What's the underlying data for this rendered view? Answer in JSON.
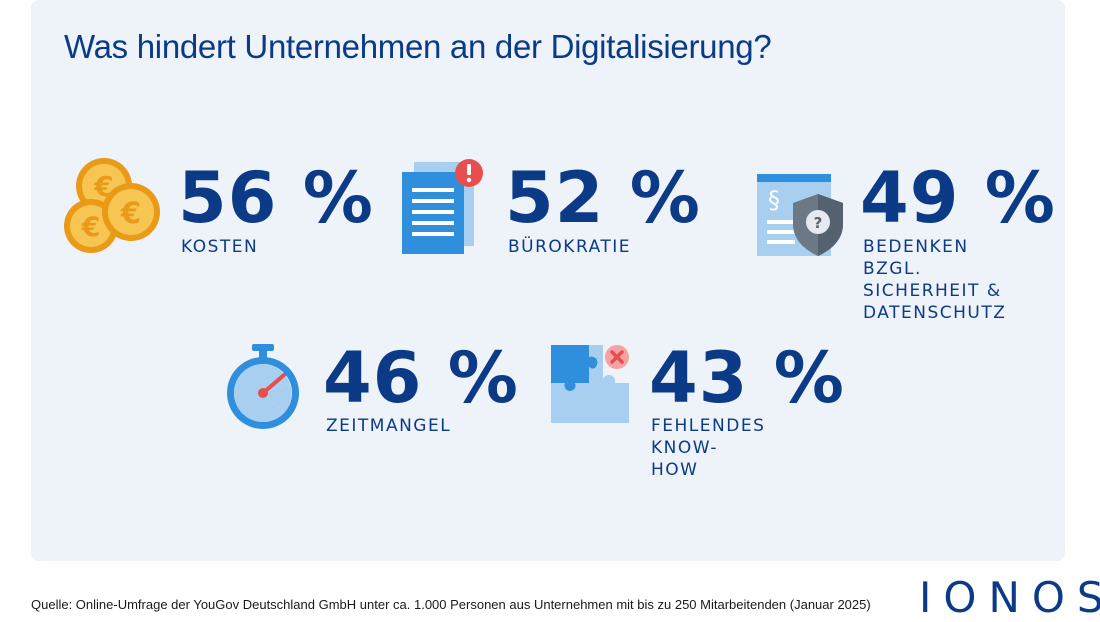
{
  "title": "Was hindert Unternehmen an der Digitalisierung?",
  "chart_data": {
    "type": "table",
    "items": [
      {
        "value": 56,
        "unit": "%",
        "display": "56 %",
        "label": "KOSTEN",
        "icon": "euro-coins-icon"
      },
      {
        "value": 52,
        "unit": "%",
        "display": "52 %",
        "label": "BÜROKRATIE",
        "icon": "documents-alert-icon"
      },
      {
        "value": 49,
        "unit": "%",
        "display": "49 %",
        "label": "BEDENKEN BZGL.\nSICHERHEIT &\nDATENSCHUTZ",
        "icon": "paragraph-shield-icon"
      },
      {
        "value": 46,
        "unit": "%",
        "display": "46 %",
        "label": "ZEITMANGEL",
        "icon": "stopwatch-icon"
      },
      {
        "value": 43,
        "unit": "%",
        "display": "43 %",
        "label": "FEHLENDES\nKNOW-HOW",
        "icon": "puzzle-icon"
      }
    ]
  },
  "source": "Quelle: Online-Umfrage der YouGov Deutschland GmbH unter ca. 1.000 Personen aus Unternehmen mit bis zu 250 Mitarbeitenden (Januar 2025)",
  "logo": "IONOS",
  "colors": {
    "primary": "#0b3a86",
    "background": "#eef2f9",
    "coin": "#f3b63b",
    "coin_dark": "#e99a17",
    "doc_blue": "#2f8fdc",
    "light_blue": "#a9cff0",
    "alert_red": "#e94e4e",
    "shield_gray": "#6b7886"
  }
}
